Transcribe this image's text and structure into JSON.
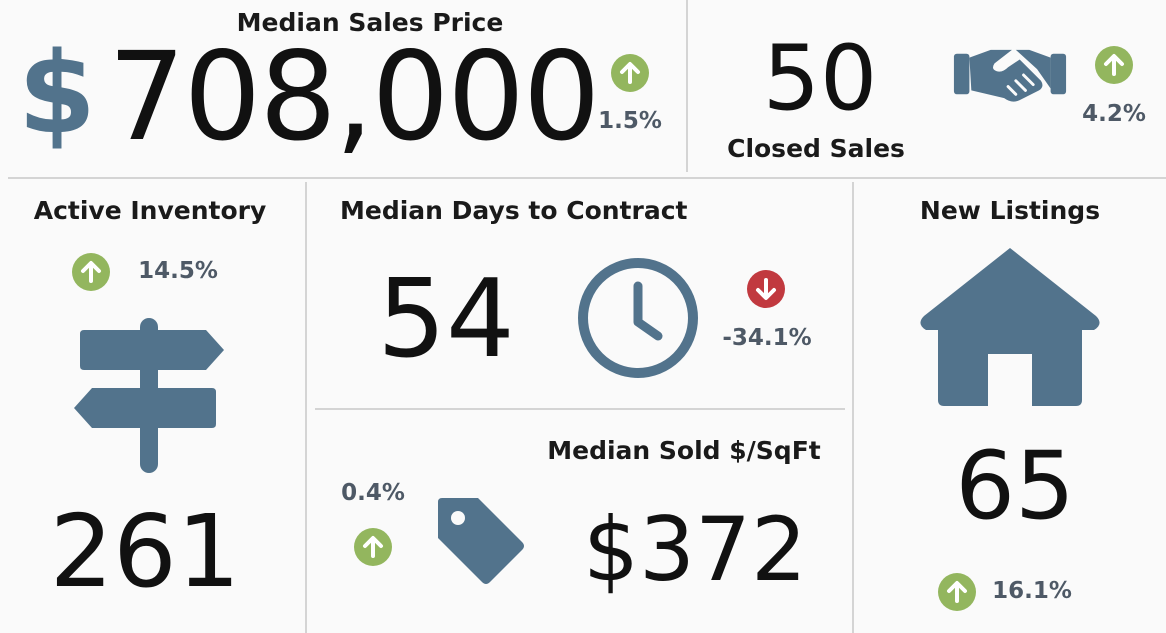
{
  "colors": {
    "icon": "#52738c",
    "up": "#93b65e",
    "down": "#c1393f",
    "value_text": "#111111",
    "pct_text": "#4e5966"
  },
  "median_sales_price": {
    "title": "Median Sales Price",
    "currency_symbol": "$",
    "value": "708,000",
    "change": "1.5%",
    "trend": "up",
    "icon": "dollar-icon"
  },
  "closed_sales": {
    "title": "Closed Sales",
    "value": "50",
    "change": "4.2%",
    "trend": "up",
    "icon": "handshake-icon"
  },
  "active_inventory": {
    "title": "Active Inventory",
    "value": "261",
    "change": "14.5%",
    "trend": "up",
    "icon": "signpost-icon"
  },
  "median_days_to_contract": {
    "title": "Median Days to Contract",
    "value": "54",
    "change": "-34.1%",
    "trend": "down",
    "icon": "clock-icon"
  },
  "median_sold_per_sqft": {
    "title": "Median Sold $/SqFt",
    "value": "$372",
    "change": "0.4%",
    "trend": "up",
    "icon": "price-tag-icon"
  },
  "new_listings": {
    "title": "New Listings",
    "value": "65",
    "change": "16.1%",
    "trend": "up",
    "icon": "house-icon"
  }
}
